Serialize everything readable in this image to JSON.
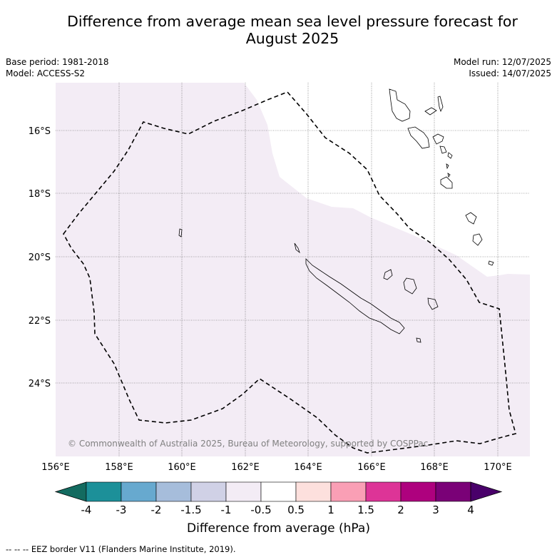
{
  "title": {
    "line1": "Difference from average mean sea level pressure forecast for",
    "line2": "August 2025"
  },
  "meta": {
    "base_period": "Base period: 1981-2018",
    "model": "Model: ACCESS-S2",
    "model_run": "Model run: 12/07/2025",
    "issued": "Issued: 14/07/2025"
  },
  "map": {
    "lon_labels": [
      "156°E",
      "158°E",
      "160°E",
      "162°E",
      "164°E",
      "166°E",
      "168°E",
      "170°E"
    ],
    "lat_labels": [
      "16°S",
      "18°S",
      "20°S",
      "22°S",
      "24°S"
    ],
    "copyright": "© Commonwealth of Australia 2025, Bureau of Meteorology, supported by COSPPac",
    "shading_color": "#f3ecf5",
    "eez_color": "#000000"
  },
  "colorbar": {
    "colors": [
      "#136b60",
      "#1c9099",
      "#67a9cf",
      "#a6bddb",
      "#d0d1e6",
      "#f3ecf5",
      "#ffffff",
      "#fde0dd",
      "#fa9fb5",
      "#dd3497",
      "#ae017e",
      "#7a0177",
      "#49006a"
    ],
    "ticks": [
      "-4",
      "-3",
      "-2",
      "-1.5",
      "-1",
      "-0.5",
      "0.5",
      "1",
      "1.5",
      "2",
      "3",
      "4"
    ],
    "label": "Difference from average (hPa)"
  },
  "legend_note": "--  --  -- EEZ border V11 (Flanders Marine Institute, 2019)."
}
